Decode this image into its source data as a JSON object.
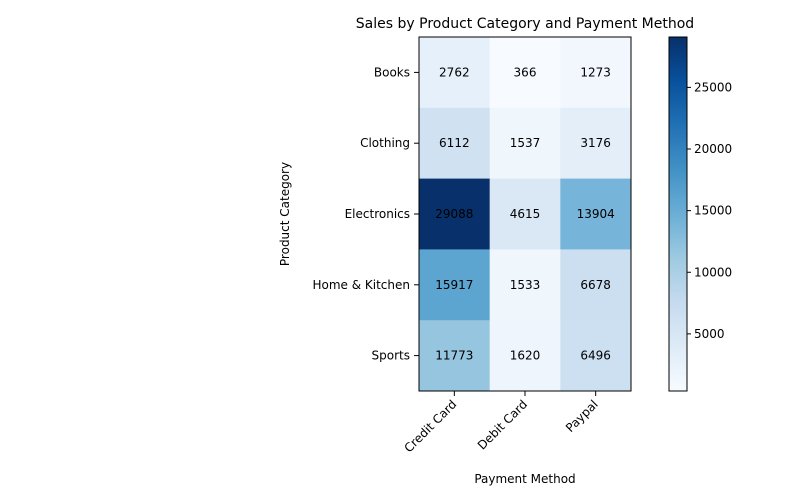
{
  "chart_data": {
    "type": "heatmap",
    "title": "Sales by Product Category and Payment Method",
    "xlabel": "Payment Method",
    "ylabel": "Product Category",
    "x_categories": [
      "Credit Card",
      "Debit Card",
      "Paypal"
    ],
    "y_categories": [
      "Books",
      "Clothing",
      "Electronics",
      "Home & Kitchen",
      "Sports"
    ],
    "values": [
      [
        2762,
        366,
        1273
      ],
      [
        6112,
        1537,
        3176
      ],
      [
        29088,
        4615,
        13904
      ],
      [
        15917,
        1533,
        6678
      ],
      [
        11773,
        1620,
        6496
      ]
    ],
    "colormap": "Blues",
    "colorbar": {
      "ticks": [
        5000,
        10000,
        15000,
        20000,
        25000
      ],
      "min": 366,
      "max": 29088
    },
    "grid": false
  }
}
